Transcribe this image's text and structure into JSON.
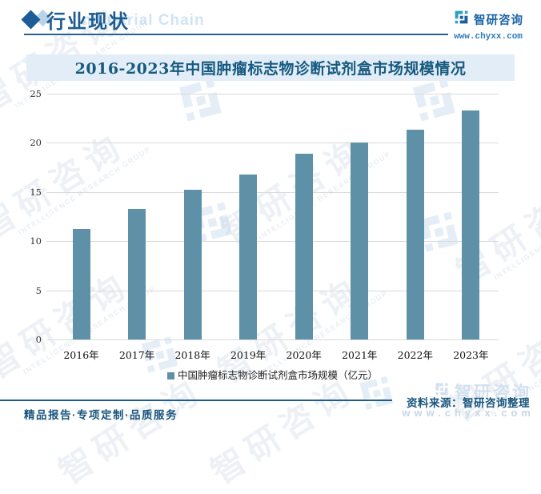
{
  "header": {
    "section_title": "行业现状",
    "background_text": "Industrial Chain"
  },
  "brand": {
    "name": "智研咨询",
    "website": "www.chyxx.com"
  },
  "chart_data": {
    "type": "bar",
    "title": "2016-2023年中国肿瘤标志物诊断试剂盒市场规模情况",
    "categories": [
      "2016年",
      "2017年",
      "2018年",
      "2019年",
      "2020年",
      "2021年",
      "2022年",
      "2023年"
    ],
    "values": [
      11.2,
      13.3,
      15.2,
      16.8,
      18.9,
      20.0,
      21.3,
      23.3
    ],
    "legend": "中国肿瘤标志物诊断试剂盒市场规模（亿元）",
    "xlabel": "",
    "ylabel": "",
    "ylim": [
      0,
      25
    ],
    "yticks": [
      0,
      5,
      10,
      15,
      20,
      25
    ],
    "grid": true,
    "legend_position": "bottom",
    "bar_color": "#5e91a8"
  },
  "footer": {
    "source": "资料来源：智研咨询整理",
    "tagline": "精品报告·专项定制·品质服务",
    "website_watermark": "www.chyxx.com"
  },
  "watermarks": {
    "brand_cn": "智研咨询",
    "brand_en": "INTELLIGENCE RESEARCH GROUP"
  }
}
